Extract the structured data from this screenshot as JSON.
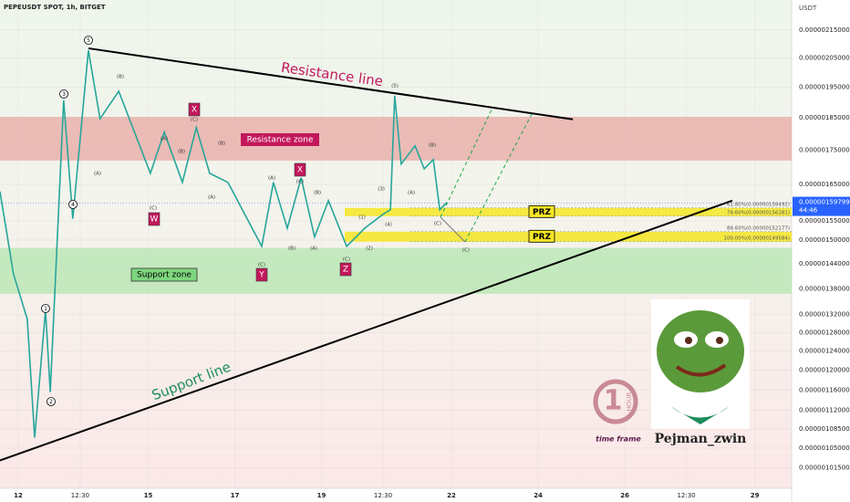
{
  "chart_data": {
    "type": "line",
    "title": "PEPEUSDT SPOT, 1h, BITGET",
    "currency": "USDT",
    "log_scale": true,
    "color": "#26a69a",
    "x": [
      11.58,
      11.89,
      12.21,
      12.38,
      12.63,
      12.74,
      13.05,
      13.26,
      13.62,
      13.89,
      14.32,
      15.05,
      15.37,
      15.79,
      16.11,
      16.42,
      16.84,
      17.62,
      17.89,
      18.21,
      18.53,
      18.84,
      19.16,
      19.58,
      20.0,
      20.42,
      20.59,
      20.69,
      20.84,
      21.16,
      21.37,
      21.58,
      21.73,
      21.89
    ],
    "values": [
      1.63e-06,
      1.416e-06,
      1.31e-06,
      1.069e-06,
      1.33e-06,
      1.156e-06,
      1.906e-06,
      1.556e-06,
      2.077e-06,
      1.847e-06,
      1.936e-06,
      1.682e-06,
      1.805e-06,
      1.656e-06,
      1.819e-06,
      1.682e-06,
      1.656e-06,
      1.484e-06,
      1.656e-06,
      1.531e-06,
      1.669e-06,
      1.508e-06,
      1.605e-06,
      1.484e-06,
      1.531e-06,
      1.568e-06,
      1.58e-06,
      1.921e-06,
      1.709e-06,
      1.763e-06,
      1.695e-06,
      1.722e-06,
      1.58e-06,
      1.6e-06
    ],
    "xlim": [
      11.58,
      29.85
    ],
    "xticks": [
      12,
      {
        "value": 13.43,
        "label": "12:30"
      },
      15,
      17,
      19,
      {
        "value": 20.42,
        "label": "12:30"
      },
      22,
      24,
      26,
      {
        "value": 27.42,
        "label": "12:30"
      },
      29
    ],
    "ylim": [
      9.8e-07,
      2.264e-06
    ],
    "yticks": [
      {
        "value": 2.15e-06,
        "label": "0.00000215000"
      },
      {
        "value": 2.05e-06,
        "label": "0.00000205000"
      },
      {
        "value": 1.95e-06,
        "label": "0.00000195000"
      },
      {
        "value": 1.85e-06,
        "label": "0.00000185000"
      },
      {
        "value": 1.75e-06,
        "label": "0.00000175000"
      },
      {
        "value": 1.65e-06,
        "label": "0.00000165000"
      },
      {
        "value": 1.55e-06,
        "label": "0.00000155000"
      },
      {
        "value": 1.5e-06,
        "label": "0.00000150000"
      },
      {
        "value": 1.44e-06,
        "label": "0.00000144000"
      },
      {
        "value": 1.38e-06,
        "label": "0.00000138000"
      },
      {
        "value": 1.32e-06,
        "label": "0.00000132000"
      },
      {
        "value": 1.28e-06,
        "label": "0.00000128000"
      },
      {
        "value": 1.24e-06,
        "label": "0.00000124000"
      },
      {
        "value": 1.2e-06,
        "label": "0.00000120000"
      },
      {
        "value": 1.16e-06,
        "label": "0.00000116000"
      },
      {
        "value": 1.12e-06,
        "label": "0.00000112000"
      },
      {
        "value": 1.085e-06,
        "label": "0.00000108500"
      },
      {
        "value": 1.05e-06,
        "label": "0.00000105000"
      },
      {
        "value": 1.015e-06,
        "label": "0.00000101500"
      }
    ],
    "last_price": {
      "value": 1.59799e-06,
      "label": "0.00000159799"
    },
    "countdown": "44:46",
    "zones": [
      {
        "name": "Resistance zone",
        "range": [
          1.719e-06,
          1.853e-06
        ],
        "color": "#e8a8a4"
      },
      {
        "name": "Support zone",
        "range": [
          1.368e-06,
          1.48e-06
        ],
        "color": "#b4e6b0"
      }
    ],
    "trendlines": [
      {
        "name": "Resistance line",
        "color": "#000000",
        "label_color": "#c2185b",
        "x": [
          13.62,
          24.8
        ],
        "values": [
          2.084e-06,
          1.845e-06
        ]
      },
      {
        "name": "Support line",
        "color": "#000000",
        "label_color": "#1e8c5a",
        "x": [
          11.58,
          28.48
        ],
        "values": [
          1.028e-06,
          1.605e-06
        ]
      }
    ],
    "prz": [
      {
        "label": "PRZ",
        "fibs": [
          {
            "label": "61.80%(0.00000158492)",
            "price": 1.58492e-06
          },
          {
            "label": "78.60%(0.00000156281)",
            "price": 1.56281e-06
          }
        ]
      },
      {
        "label": "PRZ",
        "fibs": [
          {
            "label": "88.60%(0.00000152177)",
            "price": 1.52177e-06
          },
          {
            "label": "100.00%(0.00000149584)",
            "price": 1.49584e-06
          }
        ]
      }
    ],
    "wave_numbers": [
      "1",
      "2",
      "3",
      "4",
      "5"
    ],
    "wave_letters": [
      "W",
      "X",
      "Y",
      "X",
      "Z"
    ],
    "sub_labels": [
      "(B)",
      "(A)",
      "(C)",
      "(A)",
      "(B)",
      "(C)",
      "(A)",
      "(B)",
      "(A)",
      "(C)",
      "(B)",
      "(C)",
      "(B)",
      "(A)",
      "(C)",
      "(1)",
      "(2)",
      "(3)",
      "(4)",
      "(5)",
      "(A)",
      "(B)",
      "(C)",
      "(C)"
    ],
    "watermark": {
      "badge_number": "1",
      "badge_text": "HOUR",
      "caption": "time frame",
      "author": "Pejman_zwin"
    }
  }
}
